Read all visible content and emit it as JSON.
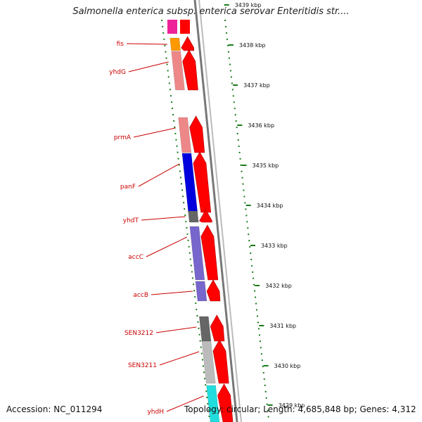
{
  "header": {
    "title": "Salmonella enterica subsp. enterica serovar Enteritidis str...."
  },
  "footer": {
    "accession": "Accession: NC_011294",
    "summary": "Topology: circular; Length: 4,685,848 bp; Genes: 4,312"
  },
  "ruler": [
    {
      "label": "3439 kbp",
      "kbp": 3439
    },
    {
      "label": "3438 kbp",
      "kbp": 3438
    },
    {
      "label": "3437 kbp",
      "kbp": 3437
    },
    {
      "label": "3436 kbp",
      "kbp": 3436
    },
    {
      "label": "3435 kbp",
      "kbp": 3435
    },
    {
      "label": "3434 kbp",
      "kbp": 3434
    },
    {
      "label": "3433 kbp",
      "kbp": 3433
    },
    {
      "label": "3432 kbp",
      "kbp": 3432
    },
    {
      "label": "3431 kbp",
      "kbp": 3431
    },
    {
      "label": "3430 kbp",
      "kbp": 3430
    },
    {
      "label": "3429 kbp",
      "kbp": 3429
    }
  ],
  "genes": [
    {
      "name": "fis",
      "color": "#ff9900"
    },
    {
      "name": "yhdG",
      "color": "#ee8888"
    },
    {
      "name": "prmA",
      "color": "#ee8888"
    },
    {
      "name": "panF",
      "color": "#0000dd"
    },
    {
      "name": "yhdT",
      "color": "#666666"
    },
    {
      "name": "accC",
      "color": "#7766cc"
    },
    {
      "name": "accB",
      "color": "#7766cc"
    },
    {
      "name": "SEN3212",
      "color": "#666666"
    },
    {
      "name": "SEN3211",
      "color": "#bbbbbb"
    },
    {
      "name": "yhdH",
      "color": "#22dddd"
    }
  ],
  "colors": {
    "cds": "#ff0000",
    "label": "#cc0000",
    "backbone": "#888888",
    "tick": "#1a7a1a"
  }
}
